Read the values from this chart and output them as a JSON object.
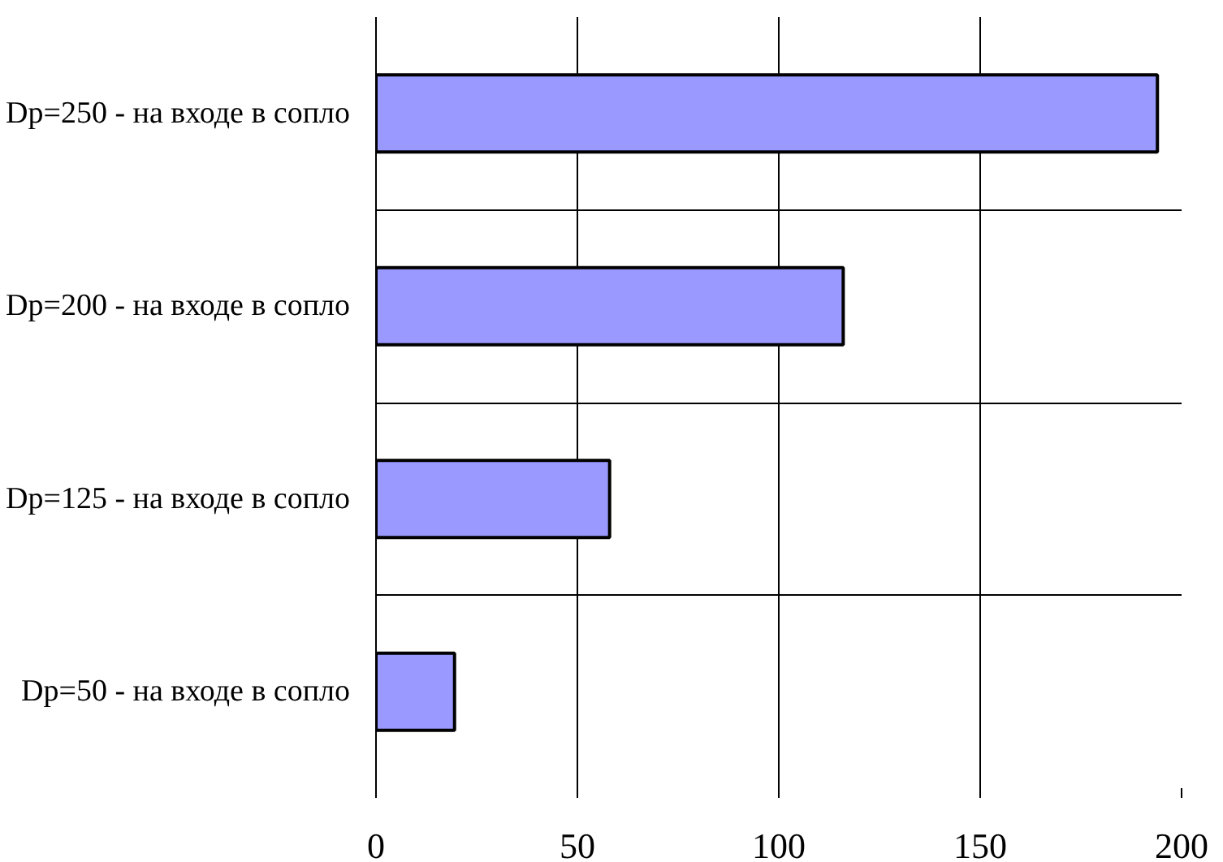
{
  "chart_data": {
    "type": "bar",
    "orientation": "horizontal",
    "categories": [
      "Dp=250 - на входе в сопло",
      "Dp=200 - на входе в сопло",
      "Dp=125 - на входе в сопло",
      "Dp=50 - на входе в сопло"
    ],
    "values": [
      194,
      116,
      58,
      19.5
    ],
    "color": "#9999ff",
    "xlim": [
      0,
      200
    ],
    "xticks": [
      0,
      50,
      100,
      150,
      200
    ],
    "grid": true
  }
}
